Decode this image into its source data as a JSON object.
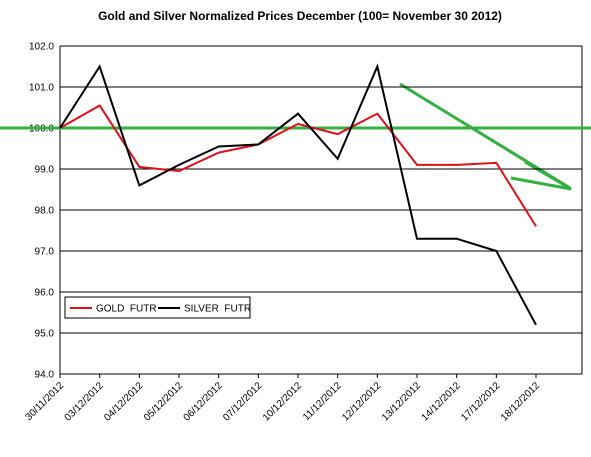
{
  "chart_data": {
    "type": "line",
    "title": "Gold and Silver Normalized Prices December (100= November 30 2012)",
    "categories": [
      "30/11/2012",
      "03/12/2012",
      "04/12/2012",
      "05/12/2012",
      "06/12/2012",
      "07/12/2012",
      "10/12/2012",
      "11/12/2012",
      "12/12/2012",
      "13/12/2012",
      "14/12/2012",
      "17/12/2012",
      "18/12/2012"
    ],
    "series": [
      {
        "name": "GOLD  FUTR",
        "color": "#e0101a",
        "values": [
          100,
          100.55,
          99.05,
          98.95,
          99.4,
          99.6,
          100.1,
          99.85,
          100.35,
          99.1,
          99.1,
          99.15,
          97.6
        ]
      },
      {
        "name": "SILVER  FUTR",
        "color": "#000000",
        "values": [
          100,
          101.5,
          98.6,
          99.1,
          99.55,
          99.6,
          100.35,
          99.25,
          101.5,
          97.3,
          97.3,
          97.0,
          95.2
        ]
      }
    ],
    "reference_line": {
      "value": 100,
      "color": "#33b040"
    },
    "ylim": [
      94,
      102
    ],
    "yticks": [
      {
        "value": 94,
        "label": "94.0"
      },
      {
        "value": 95,
        "label": "95.0"
      },
      {
        "value": 96,
        "label": "96.0"
      },
      {
        "value": 97,
        "label": "97.0"
      },
      {
        "value": 98,
        "label": "98.0"
      },
      {
        "value": 99,
        "label": "99.0"
      },
      {
        "value": 100,
        "label": "100.0"
      },
      {
        "value": 101,
        "label": "101.0"
      },
      {
        "value": 102,
        "label": "102.0"
      }
    ],
    "grid": true
  }
}
